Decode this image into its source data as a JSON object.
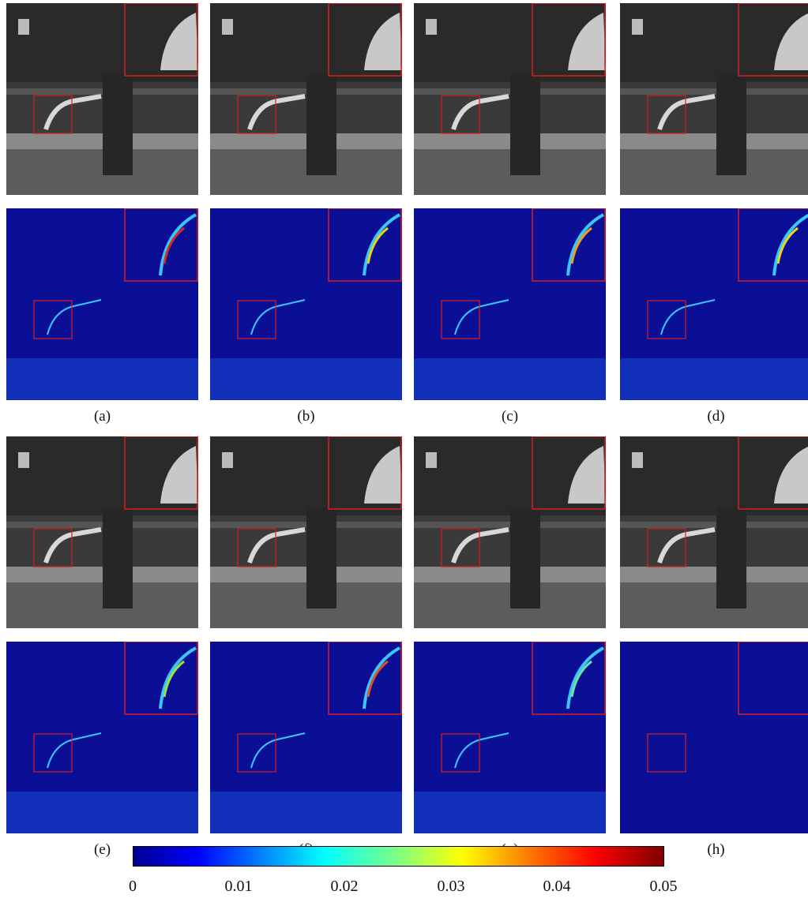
{
  "panels": [
    {
      "label": "(a)",
      "error_tint": "#d62a1c"
    },
    {
      "label": "(b)",
      "error_tint": "#e7d21a"
    },
    {
      "label": "(c)",
      "error_tint": "#e8a019"
    },
    {
      "label": "(d)",
      "error_tint": "#f0d220"
    },
    {
      "label": "(e)",
      "error_tint": "#9fe040"
    },
    {
      "label": "(f)",
      "error_tint": "#e0501a"
    },
    {
      "label": "(g)",
      "error_tint": "#70e0a0"
    },
    {
      "label": "(h)",
      "error_tint": null
    }
  ],
  "colorbar": {
    "min": 0,
    "max": 0.05,
    "ticks": [
      "0",
      "0.01",
      "0.02",
      "0.03",
      "0.04",
      "0.05"
    ],
    "colormap": "jet"
  },
  "colors": {
    "zoom_box": "#d81e1e",
    "error_background": "#0a0f96"
  }
}
